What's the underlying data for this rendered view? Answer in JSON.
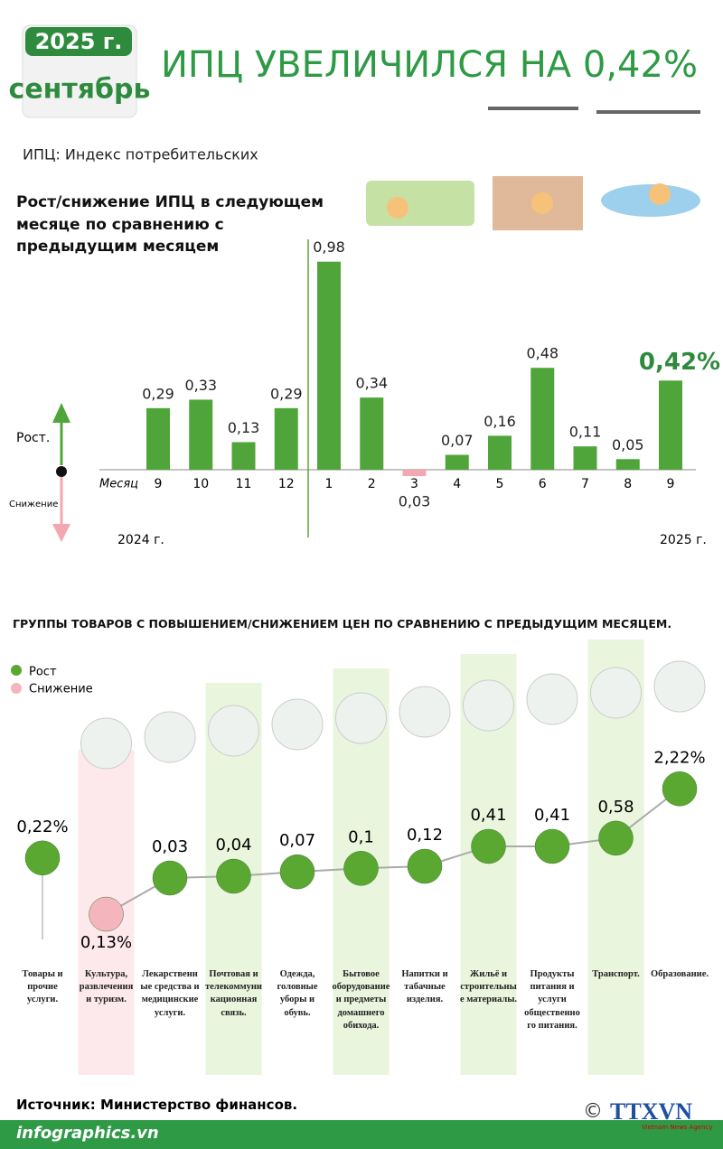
{
  "header": {
    "year": "2025 г.",
    "month": "сентябрь",
    "title": "ИПЦ УВЕЛИЧИЛСЯ НА 0,42%",
    "note": "ИПЦ: Индекс потребительских"
  },
  "chart_data": [
    {
      "type": "bar",
      "title": "Рост/снижение ИПЦ в следующем месяце по сравнению с предыдущим месяцем",
      "x_label": "Месяц",
      "categories": [
        "9",
        "10",
        "11",
        "12",
        "1",
        "2",
        "3",
        "4",
        "5",
        "6",
        "7",
        "8",
        "9"
      ],
      "values": [
        0.29,
        0.33,
        0.13,
        0.29,
        0.98,
        0.34,
        -0.03,
        0.07,
        0.16,
        0.48,
        0.11,
        0.05,
        0.42
      ],
      "value_labels": [
        "0,29",
        "0,33",
        "0,13",
        "0,29",
        "0,98",
        "0,34",
        "0,03",
        "0,07",
        "0,16",
        "0,48",
        "0,11",
        "0,05",
        "0,42%"
      ],
      "color": "#4fa53a",
      "negative_color": "#f3a7b1",
      "ylim": [
        -0.3,
        1
      ],
      "legend": [
        "Рост.",
        "Снижение"
      ],
      "year_labels": [
        "2024 г.",
        "2025 г."
      ]
    },
    {
      "type": "dot",
      "title": "ГРУППЫ ТОВАРОВ С ПОВЫШЕНИЕМ/СНИЖЕНИЕМ ЦЕН ПО СРАВНЕНИЮ С ПРЕДЫДУЩИМ МЕСЯЦЕМ.",
      "series": [
        {
          "name": "Рост",
          "color": "#5aa832"
        },
        {
          "name": "Снижение",
          "color": "#f5b5bd"
        }
      ],
      "categories": [
        "Товары и прочие услуги.",
        "Культура, развлечения и туризм.",
        "Лекарственные средства и медицинские услуги.",
        "Почтовая и телекоммуникационная связь.",
        "Одежда, головные уборы и обувь.",
        "Бытовое оборудование и предметы домашнего обихода.",
        "Напитки и табачные изделия.",
        "Жильё и строительные материалы.",
        "Продукты питания и услуги общественного питания.",
        "Транспорт.",
        "Образование."
      ],
      "values": [
        0.22,
        -0.13,
        0.03,
        0.04,
        0.07,
        0.1,
        0.12,
        0.41,
        0.41,
        0.58,
        2.22
      ],
      "value_labels": [
        "0,22%",
        "0,13%",
        "0,03",
        "0,04",
        "0,07",
        "0,1",
        "0,12",
        "0,41",
        "0,41",
        "0,58",
        "2,22%"
      ]
    }
  ],
  "footer": {
    "source": "Источник: Министерство финансов.",
    "site": "infographics.vn",
    "copyright": "©",
    "logo": "TTXVN",
    "logo_sub": "Vietnam News Agency"
  }
}
